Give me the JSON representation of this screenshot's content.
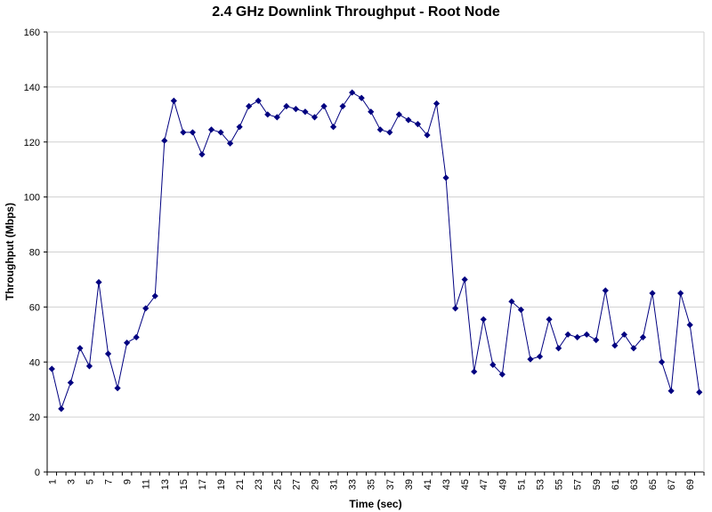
{
  "chart_data": {
    "type": "line",
    "title": "2.4 GHz Downlink Throughput - Root Node",
    "xlabel": "Time (sec)",
    "ylabel": "Throughput (Mbps)",
    "ylim": [
      0,
      160
    ],
    "yticks": [
      0,
      20,
      40,
      60,
      80,
      100,
      120,
      140,
      160
    ],
    "xlim": [
      1,
      70
    ],
    "xtick_labels": [
      "1",
      "3",
      "5",
      "7",
      "9",
      "11",
      "13",
      "15",
      "17",
      "19",
      "21",
      "23",
      "25",
      "27",
      "29",
      "31",
      "33",
      "35",
      "37",
      "39",
      "41",
      "43",
      "45",
      "47",
      "49",
      "51",
      "53",
      "55",
      "57",
      "59",
      "61",
      "63",
      "65",
      "67",
      "69"
    ],
    "grid": true,
    "legend": "none",
    "series_color": "#000080",
    "series": [
      {
        "name": "Throughput",
        "x": [
          1,
          2,
          3,
          4,
          5,
          6,
          7,
          8,
          9,
          10,
          11,
          12,
          13,
          14,
          15,
          16,
          17,
          18,
          19,
          20,
          21,
          22,
          23,
          24,
          25,
          26,
          27,
          28,
          29,
          30,
          31,
          32,
          33,
          34,
          35,
          36,
          37,
          38,
          39,
          40,
          41,
          42,
          43,
          44,
          45,
          46,
          47,
          48,
          49,
          50,
          51,
          52,
          53,
          54,
          55,
          56,
          57,
          58,
          59,
          60,
          61,
          62,
          63,
          64,
          65,
          66,
          67,
          68,
          69,
          70
        ],
        "values": [
          37.5,
          23,
          32.5,
          45,
          38.5,
          69,
          43,
          30.5,
          47,
          49,
          59.5,
          64,
          120.5,
          135,
          123.5,
          123.5,
          115.5,
          124.5,
          123.5,
          119.5,
          125.5,
          133,
          135,
          130,
          129,
          133,
          132,
          131,
          129,
          133,
          125.5,
          133,
          138,
          136,
          131,
          124.5,
          123.5,
          130,
          128,
          126.5,
          122.5,
          134,
          107,
          59.5,
          70,
          36.5,
          55.5,
          39,
          35.5,
          62,
          59,
          41,
          42,
          55.5,
          45,
          50,
          49,
          50,
          48,
          66,
          46,
          50,
          45,
          49,
          65,
          40,
          29.5,
          65,
          53.5,
          29
        ]
      }
    ]
  }
}
